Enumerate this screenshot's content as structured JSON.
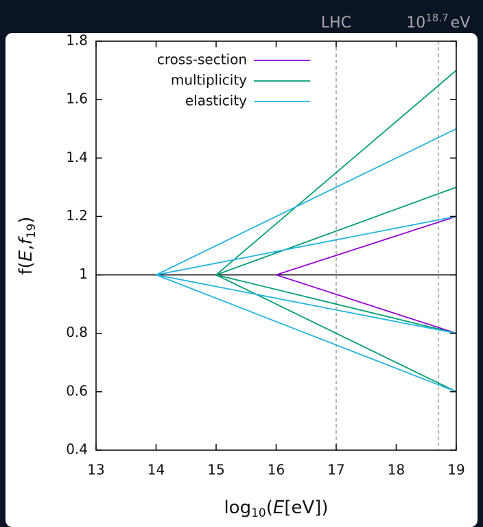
{
  "chart_data": {
    "type": "line",
    "xlim": [
      13,
      19
    ],
    "xticks": [
      13,
      14,
      15,
      16,
      17,
      18,
      19
    ],
    "ylim": [
      0.4,
      1.8
    ],
    "yticks": [
      0.4,
      0.6,
      0.8,
      1,
      1.2,
      1.4,
      1.6,
      1.8
    ],
    "x_label": [
      "log",
      "10",
      "(",
      "E",
      "[eV])"
    ],
    "y_label": [
      "f(",
      "E",
      ",",
      "f",
      "19",
      ")"
    ],
    "reference_line": 1,
    "markers": [
      {
        "x": 17,
        "label": [
          "LHC"
        ]
      },
      {
        "x": 18.7,
        "label": [
          "10",
          "18.7",
          "eV"
        ]
      }
    ],
    "series": [
      {
        "name": "cross-section",
        "color": "#9400d3",
        "lines": [
          {
            "x": [
              16,
              19
            ],
            "values": [
              1,
              1.2
            ]
          },
          {
            "x": [
              16,
              19
            ],
            "values": [
              1,
              0.8
            ]
          }
        ]
      },
      {
        "name": "multiplicity",
        "color": "#009e73",
        "lines": [
          {
            "x": [
              15,
              19
            ],
            "values": [
              1,
              1.7
            ]
          },
          {
            "x": [
              15,
              19
            ],
            "values": [
              1,
              1.3
            ]
          },
          {
            "x": [
              15,
              19
            ],
            "values": [
              1,
              0.8
            ]
          },
          {
            "x": [
              15,
              19
            ],
            "values": [
              1,
              0.6
            ]
          }
        ]
      },
      {
        "name": "elasticity",
        "color": "#22b4e0",
        "lines": [
          {
            "x": [
              14,
              19
            ],
            "values": [
              1,
              1.5
            ]
          },
          {
            "x": [
              14,
              19
            ],
            "values": [
              1,
              1.2
            ]
          },
          {
            "x": [
              14,
              19
            ],
            "values": [
              1,
              0.8
            ]
          },
          {
            "x": [
              14,
              19
            ],
            "values": [
              1,
              0.6
            ]
          }
        ]
      }
    ]
  }
}
